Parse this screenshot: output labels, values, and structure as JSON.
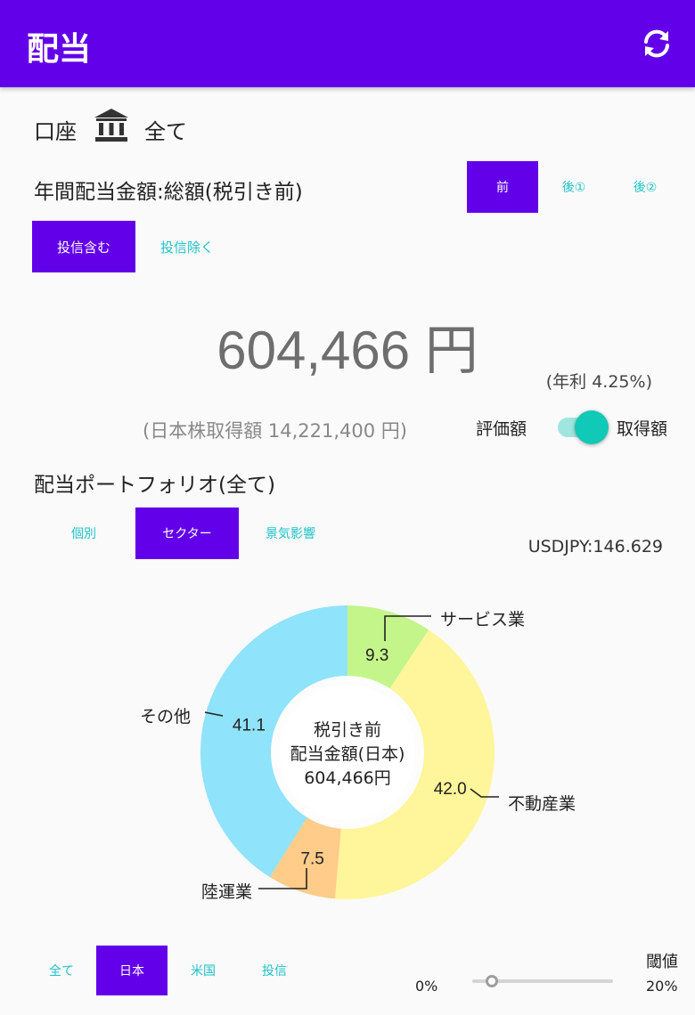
{
  "header": {
    "title": "配当",
    "refresh_icon": "refresh-icon"
  },
  "account": {
    "label": "口座",
    "value": "全て",
    "icon": "bank-icon"
  },
  "annual": {
    "title": "年間配当金額:総額(税引き前)",
    "tax_tabs": [
      "前",
      "後①",
      "後②"
    ],
    "tax_selected": "前",
    "fund_tabs": [
      "投信含む",
      "投信除く"
    ],
    "fund_selected": "投信含む",
    "amount": "604,466 円",
    "yield": "(年利 4.25%)",
    "acquisition": "(日本株取得額 14,221,400 円)",
    "toggle_left": "評価額",
    "toggle_right": "取得額",
    "toggle_on": true
  },
  "portfolio": {
    "title": "配当ポートフォリオ(全て)",
    "view_tabs": [
      "個別",
      "セクター",
      "景気影響"
    ],
    "view_selected": "セクター",
    "fx": "USDJPY:146.629",
    "center": [
      "税引き前",
      "配当金額(日本)",
      "604,466円"
    ]
  },
  "chart_data": {
    "type": "pie",
    "variant": "donut",
    "slices": [
      {
        "label": "サービス業",
        "value": 9.3,
        "color": "#c4f58a"
      },
      {
        "label": "不動産業",
        "value": 42.0,
        "color": "#fff59a"
      },
      {
        "label": "陸運業",
        "value": 7.5,
        "color": "#ffcc8a"
      },
      {
        "label": "その他",
        "value": 41.1,
        "color": "#8fe3fb"
      }
    ]
  },
  "market": {
    "tabs": [
      "全て",
      "日本",
      "米国",
      "投信"
    ],
    "selected": "日本"
  },
  "threshold": {
    "title": "閾値",
    "min": "0%",
    "max": "20%",
    "value": 0
  },
  "colors": {
    "accent": "#6200ea",
    "teal": "#1fc2c8"
  }
}
